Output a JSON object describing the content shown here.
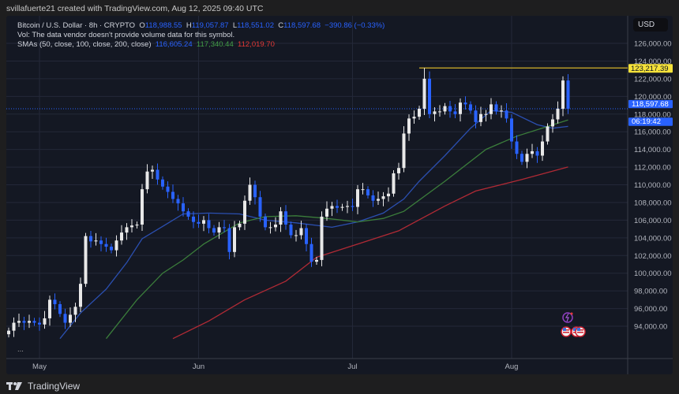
{
  "header": {
    "attribution": "svillafuerte21 created with TradingView.com, Aug 12, 2025 09:40 UTC"
  },
  "legend": {
    "symbol": "Bitcoin / U.S. Dollar · 8h · CRYPTO",
    "o_label": "O",
    "o": "118,988.55",
    "h_label": "H",
    "h": "119,057.87",
    "l_label": "L",
    "l": "118,551.02",
    "c_label": "C",
    "c": "118,597.68",
    "change": "−390.86 (−0.33%)",
    "vol": "Vol: The data vendor doesn't provide volume data for this symbol.",
    "sma_label": "SMAs (50, close, 100, close, 200, close)",
    "sma50": "116,605.24",
    "sma100": "117,340.44",
    "sma200": "112,019.70"
  },
  "more_label": "...",
  "currency": "USD",
  "footer": {
    "brand": "TradingView"
  },
  "colors": {
    "up": "#e8e8e8",
    "down": "#2962ff",
    "sma50": "#2b4fb0",
    "sma100": "#3b7d3b",
    "sma200": "#b02a35",
    "high_line": "#d4b22a",
    "last_price": "#2962ff"
  },
  "icons": [
    "lightning-event-icon",
    "us-flag-event-icon",
    "us-flag-event-icon"
  ],
  "chart_data": {
    "type": "candlestick",
    "first_date": "2025-04-25",
    "closes": [
      93500,
      94400,
      94600,
      94400,
      94600,
      94400,
      94200,
      94900,
      97000,
      96500,
      95400,
      94400,
      95300,
      96200,
      98800,
      104200,
      103600,
      103700,
      103300,
      103000,
      102600,
      103700,
      104600,
      105200,
      105400,
      105500,
      109500,
      111500,
      111700,
      110600,
      109800,
      109200,
      108400,
      107900,
      107000,
      106400,
      105800,
      105600,
      106000,
      105100,
      104600,
      105200,
      105100,
      102400,
      105200,
      105600,
      108200,
      110000,
      108600,
      106400,
      105200,
      105200,
      105500,
      107000,
      105500,
      104300,
      104300,
      105100,
      103300,
      101300,
      101500,
      106400,
      107300,
      107600,
      107400,
      107500,
      107600,
      107500,
      109500,
      109500,
      108800,
      108200,
      108400,
      108700,
      109000,
      111300,
      111900,
      115800,
      117500,
      117700,
      118600,
      122000,
      118000,
      118300,
      118300,
      118900,
      118300,
      118000,
      119300,
      119100,
      118400,
      117100,
      118000,
      118000,
      119100,
      118300,
      118400,
      117500,
      114900,
      113500,
      112600,
      113500,
      113800,
      113300,
      114900,
      116600,
      117400,
      118600,
      121800,
      118597.68
    ],
    "series": [
      {
        "name": "SMA 50",
        "color": "#2b4fb0",
        "points": [
          [
            "2025-05-05",
            92600
          ],
          [
            "2025-05-09",
            95500
          ],
          [
            "2025-05-14",
            98200
          ],
          [
            "2025-05-18",
            101200
          ],
          [
            "2025-05-21",
            103900
          ],
          [
            "2025-05-25",
            105300
          ],
          [
            "2025-05-29",
            106700
          ],
          [
            "2025-06-03",
            106800
          ],
          [
            "2025-06-09",
            106700
          ],
          [
            "2025-06-14",
            106000
          ],
          [
            "2025-06-20",
            105700
          ],
          [
            "2025-06-27",
            105200
          ],
          [
            "2025-07-02",
            105800
          ],
          [
            "2025-07-07",
            106800
          ],
          [
            "2025-07-11",
            108400
          ],
          [
            "2025-07-14",
            110400
          ],
          [
            "2025-07-19",
            113300
          ],
          [
            "2025-07-24",
            116400
          ],
          [
            "2025-07-28",
            118400
          ],
          [
            "2025-08-01",
            118200
          ],
          [
            "2025-08-06",
            116800
          ],
          [
            "2025-08-09",
            116400
          ],
          [
            "2025-08-12",
            116605.24
          ]
        ]
      },
      {
        "name": "SMA 100",
        "color": "#3b7d3b",
        "points": [
          [
            "2025-05-14",
            92600
          ],
          [
            "2025-05-20",
            97000
          ],
          [
            "2025-05-25",
            100000
          ],
          [
            "2025-05-29",
            101500
          ],
          [
            "2025-06-02",
            103300
          ],
          [
            "2025-06-09",
            105700
          ],
          [
            "2025-06-14",
            106400
          ],
          [
            "2025-06-20",
            106500
          ],
          [
            "2025-06-26",
            106200
          ],
          [
            "2025-07-02",
            105800
          ],
          [
            "2025-07-07",
            106200
          ],
          [
            "2025-07-11",
            107000
          ],
          [
            "2025-07-19",
            110400
          ],
          [
            "2025-07-27",
            114000
          ],
          [
            "2025-08-02",
            115500
          ],
          [
            "2025-08-08",
            116600
          ],
          [
            "2025-08-12",
            117340.44
          ]
        ]
      },
      {
        "name": "SMA 200",
        "color": "#b02a35",
        "points": [
          [
            "2025-05-27",
            92600
          ],
          [
            "2025-06-03",
            94600
          ],
          [
            "2025-06-10",
            97000
          ],
          [
            "2025-06-18",
            99100
          ],
          [
            "2025-06-24",
            101800
          ],
          [
            "2025-07-02",
            103300
          ],
          [
            "2025-07-10",
            104800
          ],
          [
            "2025-07-19",
            107600
          ],
          [
            "2025-07-25",
            109300
          ],
          [
            "2025-08-03",
            110600
          ],
          [
            "2025-08-12",
            112019.7
          ]
        ]
      }
    ],
    "high_line": {
      "value": 123217.39,
      "label": "123,217.39",
      "from": "2025-07-14"
    },
    "last_price": {
      "value": 118597.68,
      "label": "118,597.68",
      "countdown": "06:19:42"
    },
    "yticks": [
      "126,000.00",
      "124,000.00",
      "122,000.00",
      "120,000.00",
      "118,000.00",
      "116,000.00",
      "114,000.00",
      "112,000.00",
      "110,000.00",
      "108,000.00",
      "106,000.00",
      "104,000.00",
      "102,000.00",
      "100,000.00",
      "98,000.00",
      "96,000.00",
      "94,000.00"
    ],
    "ytick_values": [
      126000,
      124000,
      122000,
      120000,
      118000,
      116000,
      114000,
      112000,
      110000,
      108000,
      106000,
      104000,
      102000,
      100000,
      98000,
      96000,
      94000
    ],
    "xticks": [
      {
        "label": "May",
        "date": "2025-05-01"
      },
      {
        "label": "Jun",
        "date": "2025-06-01"
      },
      {
        "label": "Jul",
        "date": "2025-07-01"
      },
      {
        "label": "Aug",
        "date": "2025-08-01"
      }
    ],
    "ylim": [
      92000,
      128000
    ],
    "grid": true
  }
}
